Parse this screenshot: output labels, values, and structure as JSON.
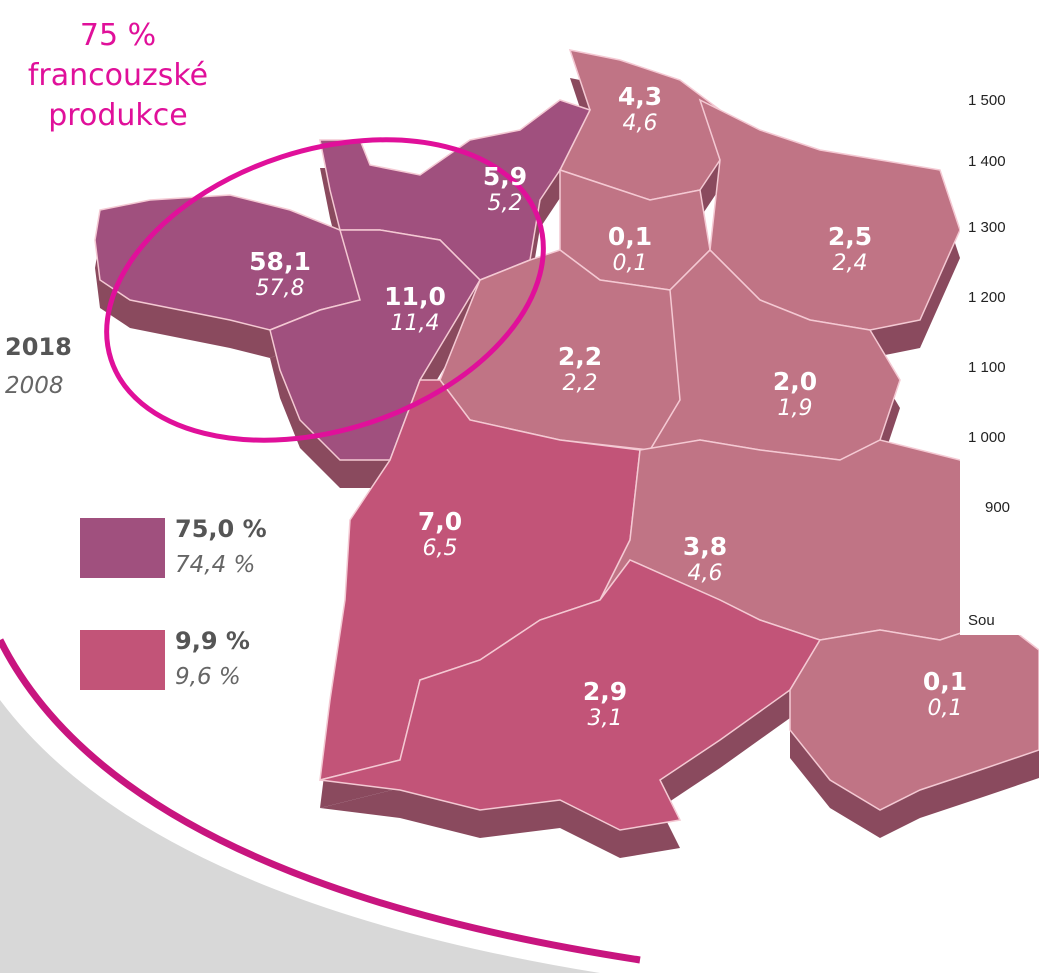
{
  "annotation": {
    "lines": [
      "75 %",
      "francouzské",
      "produkce"
    ]
  },
  "legend": {
    "year_current": "2018",
    "year_previous": "2008",
    "items": [
      {
        "current": "75,0 %",
        "previous": "74,4 %"
      },
      {
        "current": "9,9 %",
        "previous": "9,6 %"
      }
    ]
  },
  "regions": [
    {
      "current": "4,3",
      "previous": "4,6"
    },
    {
      "current": "5,9",
      "previous": "5,2"
    },
    {
      "current": "0,1",
      "previous": "0,1"
    },
    {
      "current": "2,5",
      "previous": "2,4"
    },
    {
      "current": "58,1",
      "previous": "57,8"
    },
    {
      "current": "11,0",
      "previous": "11,4"
    },
    {
      "current": "2,2",
      "previous": "2,2"
    },
    {
      "current": "2,0",
      "previous": "1,9"
    },
    {
      "current": "7,0",
      "previous": "6,5"
    },
    {
      "current": "3,8",
      "previous": "4,6"
    },
    {
      "current": "2,9",
      "previous": "3,1"
    },
    {
      "current": "0,1",
      "previous": "0,1"
    }
  ],
  "inset": {
    "axis_labels": [
      "1 500",
      "1 400",
      "1 300",
      "1 200",
      "1 100",
      "1 000",
      "900"
    ],
    "source": "Sou"
  }
}
